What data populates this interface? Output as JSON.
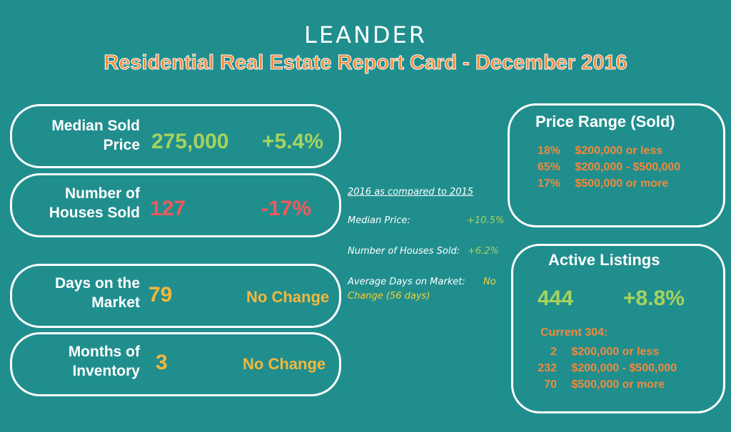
{
  "header": {
    "title": "LEANDER",
    "subtitle": "Residential Real Estate Report Card -  December 2016"
  },
  "metrics": [
    {
      "label_line1": "Median Sold",
      "label_line2": "Price",
      "value": "275,000",
      "change": "+5.4%"
    },
    {
      "label_line1": "Number of",
      "label_line2": "Houses Sold",
      "value": "127",
      "change": "-17%"
    },
    {
      "label_line1": "Days on the",
      "label_line2": "Market",
      "value": "79",
      "change": "No Change"
    },
    {
      "label_line1": "Months of",
      "label_line2": "Inventory",
      "value": "3",
      "change": "No Change"
    }
  ],
  "comparison": {
    "heading": "2016 as compared to 2015",
    "median_label": "Median Price:",
    "median_value": "+10.5%",
    "sold_label": "Number of Houses Sold:",
    "sold_value": "+6.2%",
    "dom_label": "Average Days on Market:",
    "dom_value_part1": "No",
    "dom_value_part2": "Change (56 days)"
  },
  "price_range": {
    "title": "Price Range (Sold)",
    "rows": [
      {
        "pct": "18%",
        "range": "$200,000 or less"
      },
      {
        "pct": "65%",
        "range": "$200,000 - $500,000"
      },
      {
        "pct": "17%",
        "range": "$500,000 or more"
      }
    ]
  },
  "active_listings": {
    "title": "Active Listings",
    "count": "444",
    "change": "+8.8%",
    "current_label": "Current  304:",
    "rows": [
      {
        "count": "2",
        "range": "$200,000 or less"
      },
      {
        "count": "232",
        "range": "$200,000 - $500,000"
      },
      {
        "count": "70",
        "range": "$500,000 or more"
      }
    ]
  },
  "colors": {
    "background": "#218e8e",
    "orange": "#f08a3b",
    "green": "#a6d35c",
    "red": "#f0595b",
    "gold": "#f2b83b"
  }
}
